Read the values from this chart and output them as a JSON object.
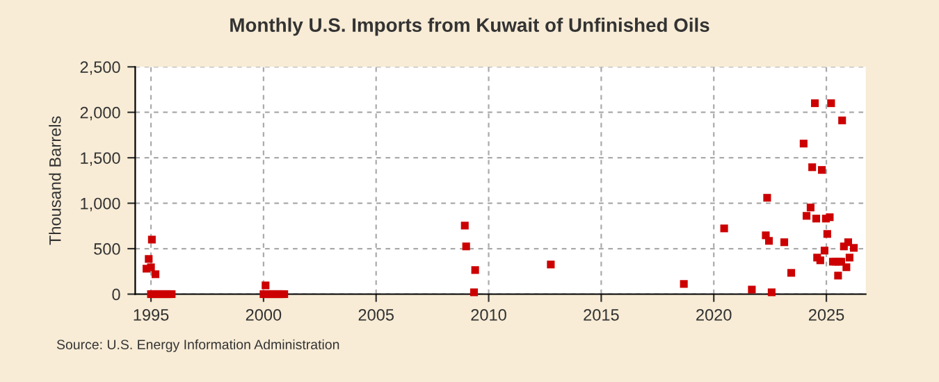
{
  "chart_data": {
    "type": "scatter",
    "title": "Monthly U.S. Imports from Kuwait of Unfinished Oils",
    "ylabel": "Thousand Barrels",
    "x": [
      1994.8,
      1994.9,
      1995.0,
      1995.04,
      1995.2,
      1995.0,
      1995.08,
      1995.17,
      1995.25,
      1995.33,
      1995.42,
      1995.5,
      1995.58,
      1995.67,
      1995.75,
      1995.83,
      1995.92,
      2000.0,
      2000.08,
      2000.17,
      2000.25,
      2000.33,
      2000.42,
      2000.5,
      2000.58,
      2000.67,
      2000.75,
      2000.83,
      2000.92,
      2000.09,
      2008.94,
      2009.0,
      2009.35,
      2009.4,
      2012.76,
      2018.67,
      2020.46,
      2021.69,
      2022.31,
      2022.37,
      2022.45,
      2022.57,
      2023.13,
      2023.44,
      2023.99,
      2024.12,
      2024.3,
      2024.37,
      2024.49,
      2024.55,
      2024.59,
      2024.73,
      2024.8,
      2024.92,
      2024.98,
      2025.04,
      2025.15,
      2025.21,
      2025.29,
      2025.41,
      2025.52,
      2025.54,
      2025.66,
      2025.7,
      2025.78,
      2025.89,
      2025.97,
      2026.03,
      2026.22
    ],
    "values": [
      280,
      387,
      295,
      600,
      219,
      0,
      0,
      0,
      0,
      0,
      0,
      0,
      0,
      0,
      0,
      0,
      0,
      0,
      0,
      0,
      0,
      0,
      0,
      0,
      0,
      0,
      0,
      0,
      0,
      96,
      754,
      525,
      20,
      265,
      326,
      112,
      723,
      50,
      647,
      1060,
      586,
      20,
      571,
      234,
      1656,
      861,
      953,
      1396,
      2100,
      831,
      402,
      372,
      1366,
      479,
      831,
      662,
      846,
      2100,
      357,
      357,
      204,
      357,
      357,
      1911,
      525,
      296,
      571,
      402,
      509
    ],
    "color": "#cc0000",
    "marker": "square",
    "xlim": [
      1994.3,
      2026.75
    ],
    "xticks": [
      1995,
      2000,
      2005,
      2010,
      2015,
      2020,
      2025
    ],
    "ylim": [
      0,
      2500
    ],
    "yticks": [
      {
        "value": 0,
        "label": "0"
      },
      {
        "value": 500,
        "label": "500"
      },
      {
        "value": 1000,
        "label": "1,000"
      },
      {
        "value": 1500,
        "label": "1,500"
      },
      {
        "value": 2000,
        "label": "2,000"
      },
      {
        "value": 2500,
        "label": "2,500"
      }
    ],
    "grid": true,
    "annotations": [
      "Source: U.S. Energy Information Administration"
    ]
  }
}
